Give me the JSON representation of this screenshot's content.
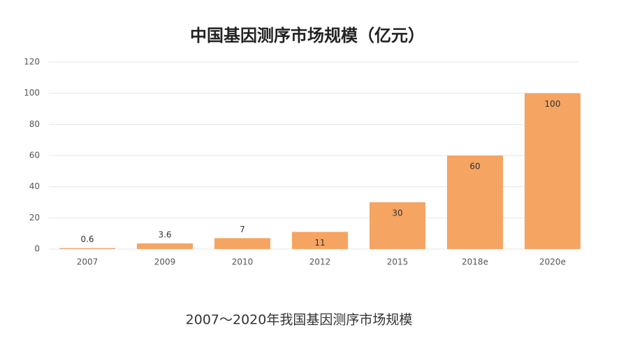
{
  "chart_data": {
    "type": "bar",
    "title": "中国基因测序市场规模（亿元）",
    "categories": [
      "2007",
      "2009",
      "2010",
      "2012",
      "2015",
      "2018e",
      "2020e"
    ],
    "values": [
      0.6,
      3.6,
      7,
      11,
      30,
      60,
      100
    ],
    "color": "#f5a462",
    "ylim": [
      0,
      120
    ],
    "yticks": [
      0,
      20,
      40,
      60,
      80,
      100,
      120
    ],
    "grid": true,
    "caption": "2007～2020年我国基因测序市场规模"
  }
}
